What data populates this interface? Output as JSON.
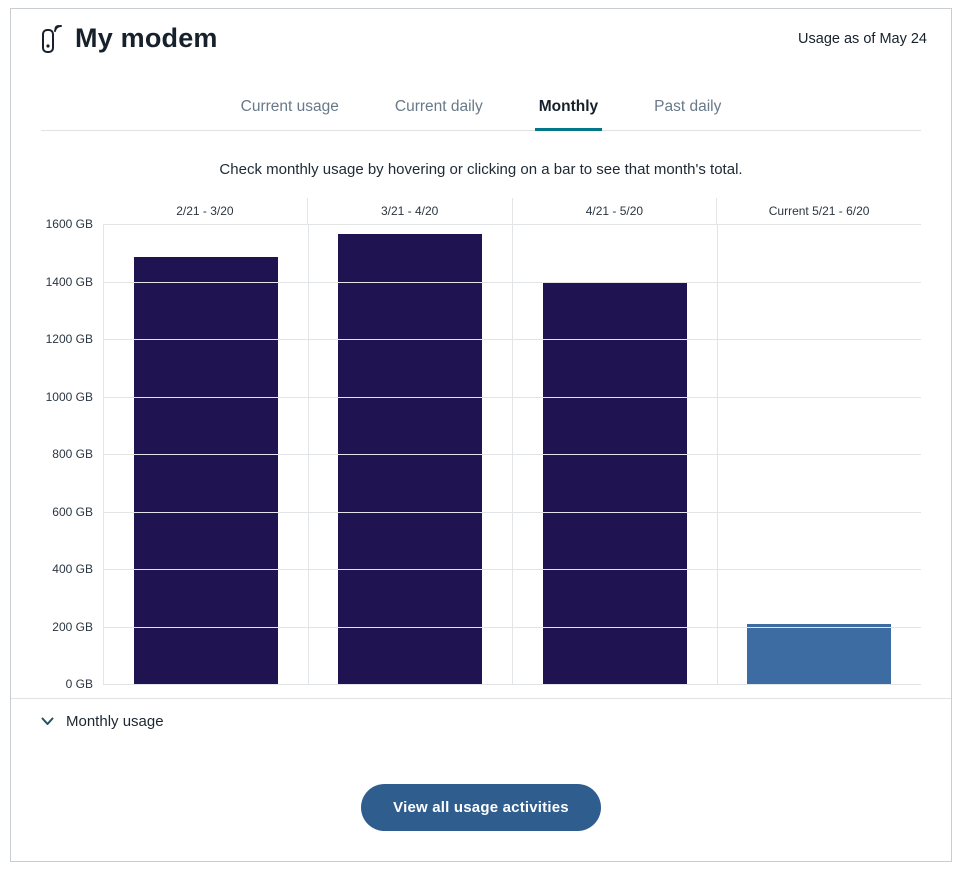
{
  "header": {
    "title": "My modem",
    "usage_as_of": "Usage as of May 24"
  },
  "tabs": [
    {
      "label": "Current usage",
      "active": false
    },
    {
      "label": "Current daily",
      "active": false
    },
    {
      "label": "Monthly",
      "active": true
    },
    {
      "label": "Past daily",
      "active": false
    }
  ],
  "instruction": "Check monthly usage by hovering or clicking on a bar to see that month's total.",
  "chart_data": {
    "type": "bar",
    "categories": [
      "2/21 - 3/20",
      "3/21 - 4/20",
      "4/21 - 5/20",
      "Current 5/21 - 6/20"
    ],
    "values": [
      1485,
      1565,
      1400,
      210
    ],
    "bar_colors": [
      "#1f1451",
      "#1f1451",
      "#1f1451",
      "#3d6ca3"
    ],
    "title": "",
    "xlabel": "",
    "ylabel": "GB",
    "ylim": [
      0,
      1600
    ],
    "ytick_step": 200,
    "ytick_suffix": " GB",
    "grid": true,
    "legend": "none"
  },
  "footer": {
    "monthly_usage_label": "Monthly usage",
    "view_all_button": "View all usage activities"
  },
  "colors": {
    "accent_teal": "#00788a",
    "bar_dark": "#1f1451",
    "bar_current": "#3d6ca3",
    "button_bg": "#2e5d8e",
    "gradient_left": "#1d6eb8",
    "gradient_right": "#41b54a"
  }
}
